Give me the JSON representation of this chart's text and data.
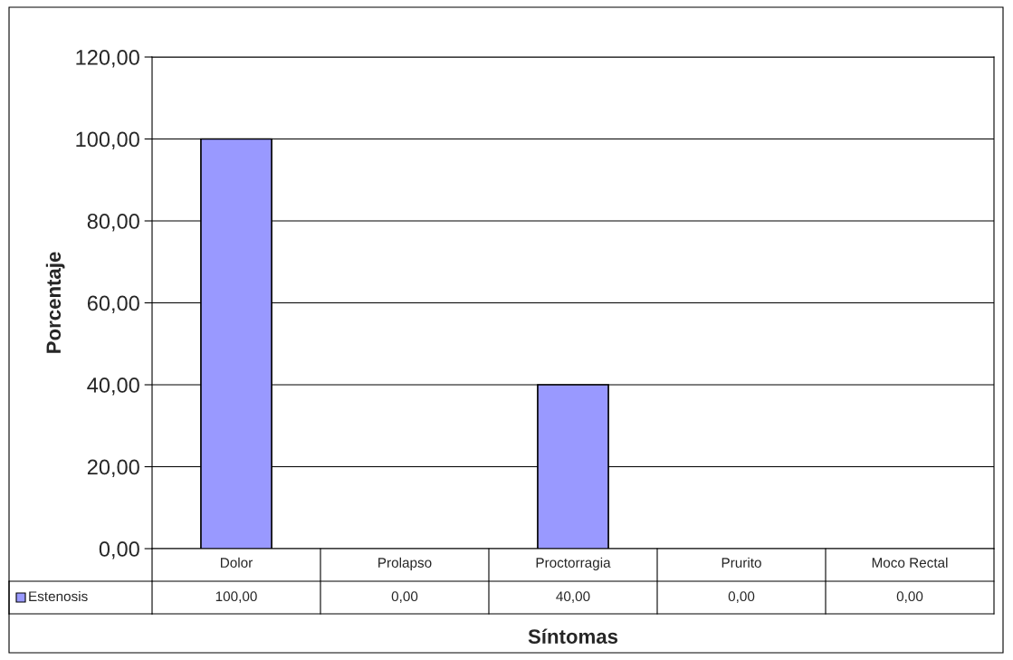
{
  "chart_data": {
    "type": "bar",
    "categories": [
      "Dolor",
      "Prolapso",
      "Proctorragia",
      "Prurito",
      "Moco Rectal"
    ],
    "series": [
      {
        "name": "Estenosis",
        "color": "#9999ff",
        "values": [
          100,
          0,
          40,
          0,
          0
        ],
        "value_labels": [
          "100,00",
          "0,00",
          "40,00",
          "0,00",
          "0,00"
        ]
      }
    ],
    "xlabel": "Síntomas",
    "ylabel": "Porcentaje",
    "ylim": [
      0,
      120
    ],
    "yticks": [
      {
        "value": 0,
        "label": "0,00"
      },
      {
        "value": 20,
        "label": "20,00"
      },
      {
        "value": 40,
        "label": "40,00"
      },
      {
        "value": 60,
        "label": "60,00"
      },
      {
        "value": 80,
        "label": "80,00"
      },
      {
        "value": 100,
        "label": "100,00"
      },
      {
        "value": 120,
        "label": "120,00"
      }
    ],
    "grid": "y"
  }
}
